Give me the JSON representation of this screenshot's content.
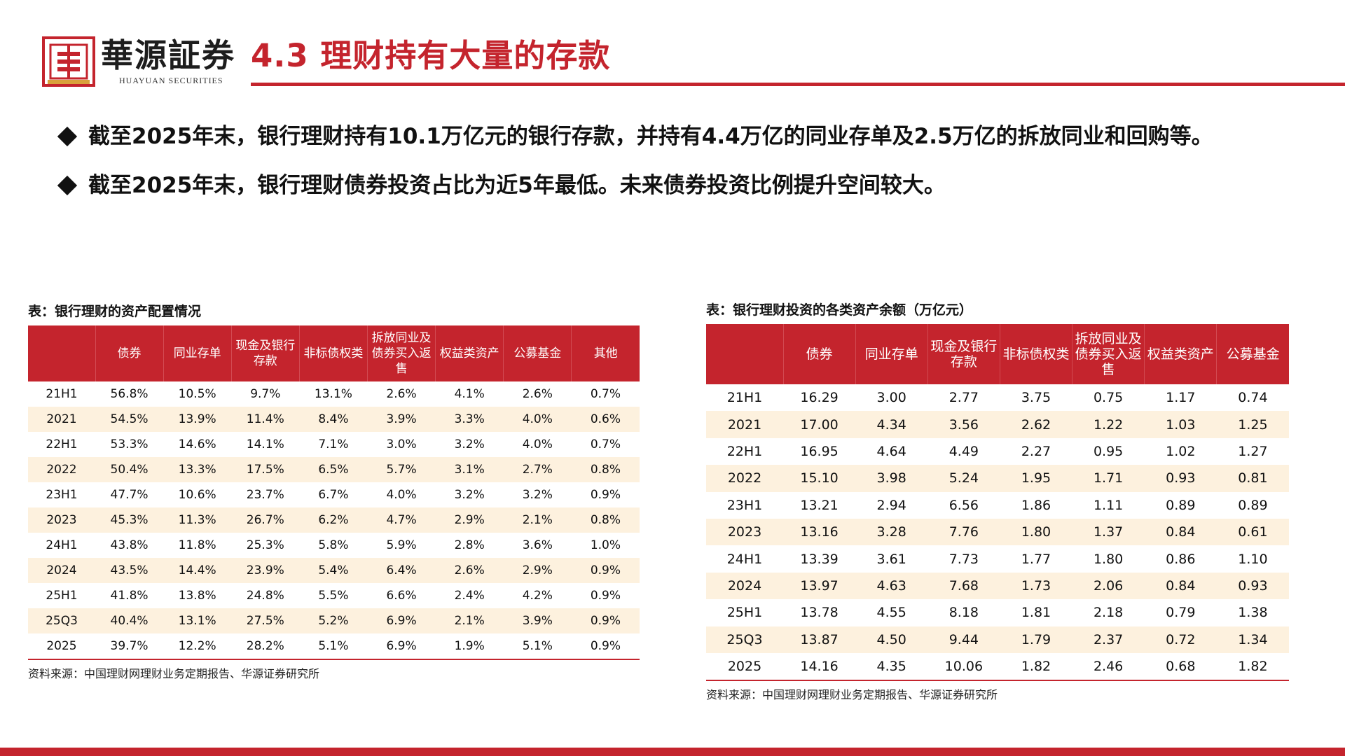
{
  "header": {
    "brand_cn": "華源証券",
    "brand_en": "HUAYUAN SECURITIES",
    "title": "4.3 理财持有大量的存款",
    "accent_color": "#c4242d"
  },
  "bullets": [
    "截至2025年末，银行理财持有10.1万亿元的银行存款，并持有4.4万亿的同业存单及2.5万亿的拆放同业和回购等。",
    "截至2025年末，银行理财债券投资占比为近5年最低。未来债券投资比例提升空间较大。"
  ],
  "table_left": {
    "caption": "表：银行理财的资产配置情况",
    "headers": [
      "",
      "债券",
      "同业存单",
      "现金及银行存款",
      "非标债权类",
      "拆放同业及债券买入返售",
      "权益类资产",
      "公募基金",
      "其他"
    ],
    "rows": [
      [
        "21H1",
        "56.8%",
        "10.5%",
        "9.7%",
        "13.1%",
        "2.6%",
        "4.1%",
        "2.6%",
        "0.7%"
      ],
      [
        "2021",
        "54.5%",
        "13.9%",
        "11.4%",
        "8.4%",
        "3.9%",
        "3.3%",
        "4.0%",
        "0.6%"
      ],
      [
        "22H1",
        "53.3%",
        "14.6%",
        "14.1%",
        "7.1%",
        "3.0%",
        "3.2%",
        "4.0%",
        "0.7%"
      ],
      [
        "2022",
        "50.4%",
        "13.3%",
        "17.5%",
        "6.5%",
        "5.7%",
        "3.1%",
        "2.7%",
        "0.8%"
      ],
      [
        "23H1",
        "47.7%",
        "10.6%",
        "23.7%",
        "6.7%",
        "4.0%",
        "3.2%",
        "3.2%",
        "0.9%"
      ],
      [
        "2023",
        "45.3%",
        "11.3%",
        "26.7%",
        "6.2%",
        "4.7%",
        "2.9%",
        "2.1%",
        "0.8%"
      ],
      [
        "24H1",
        "43.8%",
        "11.8%",
        "25.3%",
        "5.8%",
        "5.9%",
        "2.8%",
        "3.6%",
        "1.0%"
      ],
      [
        "2024",
        "43.5%",
        "14.4%",
        "23.9%",
        "5.4%",
        "6.4%",
        "2.6%",
        "2.9%",
        "0.9%"
      ],
      [
        "25H1",
        "41.8%",
        "13.8%",
        "24.8%",
        "5.5%",
        "6.6%",
        "2.4%",
        "4.2%",
        "0.9%"
      ],
      [
        "25Q3",
        "40.4%",
        "13.1%",
        "27.5%",
        "5.2%",
        "6.9%",
        "2.1%",
        "3.9%",
        "0.9%"
      ],
      [
        "2025",
        "39.7%",
        "12.2%",
        "28.2%",
        "5.1%",
        "6.9%",
        "1.9%",
        "5.1%",
        "0.9%"
      ]
    ],
    "source": "资料来源：中国理财网理财业务定期报告、华源证券研究所"
  },
  "table_right": {
    "caption": "表：银行理财投资的各类资产余额（万亿元）",
    "headers": [
      "",
      "债券",
      "同业存单",
      "现金及银行存款",
      "非标债权类",
      "拆放同业及债券买入返售",
      "权益类资产",
      "公募基金"
    ],
    "rows": [
      [
        "21H1",
        "16.29",
        "3.00",
        "2.77",
        "3.75",
        "0.75",
        "1.17",
        "0.74"
      ],
      [
        "2021",
        "17.00",
        "4.34",
        "3.56",
        "2.62",
        "1.22",
        "1.03",
        "1.25"
      ],
      [
        "22H1",
        "16.95",
        "4.64",
        "4.49",
        "2.27",
        "0.95",
        "1.02",
        "1.27"
      ],
      [
        "2022",
        "15.10",
        "3.98",
        "5.24",
        "1.95",
        "1.71",
        "0.93",
        "0.81"
      ],
      [
        "23H1",
        "13.21",
        "2.94",
        "6.56",
        "1.86",
        "1.11",
        "0.89",
        "0.89"
      ],
      [
        "2023",
        "13.16",
        "3.28",
        "7.76",
        "1.80",
        "1.37",
        "0.84",
        "0.61"
      ],
      [
        "24H1",
        "13.39",
        "3.61",
        "7.73",
        "1.77",
        "1.80",
        "0.86",
        "1.10"
      ],
      [
        "2024",
        "13.97",
        "4.63",
        "7.68",
        "1.73",
        "2.06",
        "0.84",
        "0.93"
      ],
      [
        "25H1",
        "13.78",
        "4.55",
        "8.18",
        "1.81",
        "2.18",
        "0.79",
        "1.38"
      ],
      [
        "25Q3",
        "13.87",
        "4.50",
        "9.44",
        "1.79",
        "2.37",
        "0.72",
        "1.34"
      ],
      [
        "2025",
        "14.16",
        "4.35",
        "10.06",
        "1.82",
        "2.46",
        "0.68",
        "1.82"
      ]
    ],
    "source": "资料来源：中国理财网理财业务定期报告、华源证券研究所"
  }
}
